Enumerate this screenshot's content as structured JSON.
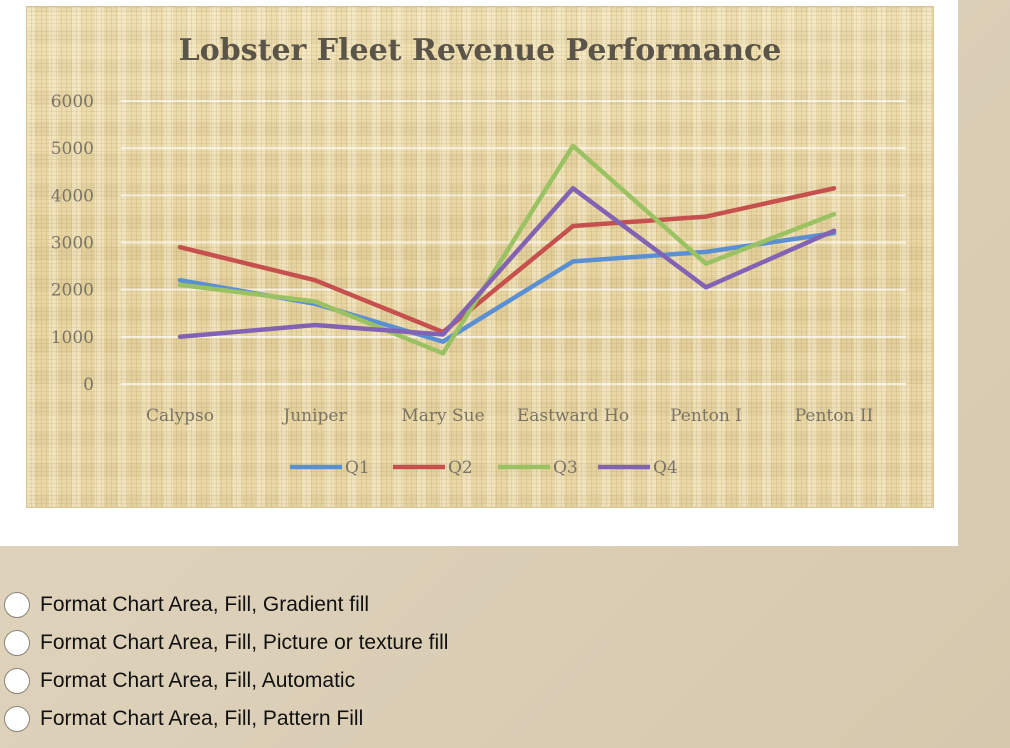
{
  "question": {
    "options": [
      {
        "label": "Format Chart Area, Fill, Gradient fill",
        "selected": false
      },
      {
        "label": "Format Chart Area, Fill, Picture or texture fill",
        "selected": false
      },
      {
        "label": "Format Chart Area, Fill, Automatic",
        "selected": false
      },
      {
        "label": "Format Chart Area, Fill, Pattern Fill",
        "selected": false
      }
    ]
  },
  "chart_data": {
    "type": "line",
    "title": "Lobster Fleet Revenue Performance",
    "xlabel": "",
    "ylabel": "",
    "categories": [
      "Calypso",
      "Juniper",
      "Mary Sue",
      "Eastward Ho",
      "Penton I",
      "Penton II"
    ],
    "ylim": [
      0,
      6000
    ],
    "yticks": [
      0,
      1000,
      2000,
      3000,
      4000,
      5000,
      6000
    ],
    "grid": true,
    "legend": "bottom",
    "background": "picture or texture fill (papyrus)",
    "series": [
      {
        "name": "Q1",
        "color": "#5b8fd4",
        "values": [
          2200,
          1700,
          900,
          2600,
          2800,
          3200
        ]
      },
      {
        "name": "Q2",
        "color": "#c5504d",
        "values": [
          2900,
          2200,
          1100,
          3350,
          3550,
          4150
        ]
      },
      {
        "name": "Q3",
        "color": "#9bc262",
        "values": [
          2100,
          1750,
          650,
          5050,
          2550,
          3600
        ]
      },
      {
        "name": "Q4",
        "color": "#8262b2",
        "values": [
          1000,
          1250,
          1050,
          4150,
          2050,
          3250
        ]
      }
    ]
  }
}
